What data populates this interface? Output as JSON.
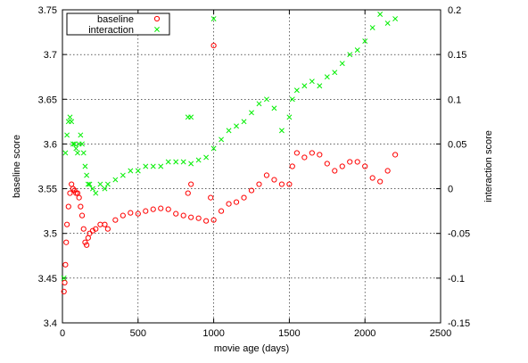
{
  "chart_data": {
    "type": "scatter",
    "title": "",
    "xlabel": "movie age (days)",
    "ylabel": "baseline score",
    "y2label": "interaction score",
    "xlim": [
      0,
      2500
    ],
    "ylim": [
      3.4,
      3.75
    ],
    "y2lim": [
      -0.15,
      0.2
    ],
    "grid": true,
    "legend_position": "top-left",
    "x_ticks": [
      "0",
      "500",
      "1000",
      "1500",
      "2000",
      "2500"
    ],
    "y_ticks": [
      "3.4",
      "3.45",
      "3.5",
      "3.55",
      "3.6",
      "3.65",
      "3.7",
      "3.75"
    ],
    "y2_ticks": [
      "-0.15",
      "-0.1",
      "-0.05",
      "0",
      "0.05",
      "0.1",
      "0.15",
      "0.2"
    ],
    "series": [
      {
        "name": "baseline",
        "axis": "left",
        "marker": "circle",
        "color": "#ff0000",
        "x": [
          10,
          15,
          20,
          25,
          30,
          40,
          50,
          60,
          70,
          80,
          90,
          100,
          110,
          120,
          130,
          140,
          150,
          160,
          170,
          180,
          200,
          220,
          250,
          280,
          300,
          350,
          400,
          450,
          500,
          550,
          600,
          650,
          700,
          750,
          800,
          850,
          900,
          950,
          1000,
          1050,
          1100,
          1150,
          1200,
          1250,
          1300,
          1350,
          1400,
          1450,
          1500,
          1520,
          1550,
          1600,
          1650,
          1700,
          1750,
          1800,
          1850,
          1900,
          1950,
          2000,
          2050,
          2100,
          2150,
          2200,
          1000,
          850,
          830,
          980
        ],
        "y": [
          3.435,
          3.445,
          3.465,
          3.49,
          3.51,
          3.53,
          3.545,
          3.555,
          3.55,
          3.548,
          3.545,
          3.545,
          3.54,
          3.53,
          3.52,
          3.505,
          3.49,
          3.487,
          3.495,
          3.5,
          3.503,
          3.505,
          3.51,
          3.51,
          3.505,
          3.515,
          3.52,
          3.523,
          3.522,
          3.525,
          3.527,
          3.528,
          3.527,
          3.522,
          3.52,
          3.518,
          3.517,
          3.514,
          3.515,
          3.525,
          3.533,
          3.535,
          3.54,
          3.548,
          3.555,
          3.565,
          3.56,
          3.555,
          3.555,
          3.575,
          3.59,
          3.585,
          3.59,
          3.588,
          3.578,
          3.57,
          3.575,
          3.58,
          3.58,
          3.575,
          3.562,
          3.558,
          3.57,
          3.588,
          3.71,
          3.555,
          3.545,
          3.54
        ]
      },
      {
        "name": "interaction",
        "axis": "right",
        "marker": "cross",
        "color": "#00ee00",
        "x": [
          10,
          20,
          30,
          40,
          50,
          60,
          70,
          80,
          90,
          100,
          110,
          120,
          130,
          140,
          150,
          160,
          170,
          180,
          200,
          220,
          250,
          280,
          300,
          350,
          400,
          450,
          500,
          550,
          600,
          650,
          700,
          750,
          800,
          850,
          900,
          950,
          1000,
          1050,
          1100,
          1150,
          1200,
          1250,
          1300,
          1350,
          1400,
          1450,
          1500,
          1520,
          1550,
          1600,
          1650,
          1700,
          1750,
          1800,
          1850,
          1900,
          1950,
          2000,
          2050,
          2100,
          2150,
          2200,
          1000,
          830,
          850
        ],
        "y": [
          -0.1,
          0.04,
          0.06,
          0.075,
          0.08,
          0.075,
          0.05,
          0.05,
          0.045,
          0.04,
          0.05,
          0.06,
          0.05,
          0.04,
          0.025,
          0.015,
          0.005,
          0.005,
          0.0,
          -0.005,
          0.005,
          0.0,
          0.005,
          0.01,
          0.015,
          0.02,
          0.02,
          0.025,
          0.025,
          0.025,
          0.03,
          0.03,
          0.03,
          0.028,
          0.032,
          0.035,
          0.045,
          0.055,
          0.065,
          0.07,
          0.075,
          0.085,
          0.095,
          0.1,
          0.09,
          0.065,
          0.08,
          0.1,
          0.11,
          0.115,
          0.12,
          0.115,
          0.125,
          0.13,
          0.14,
          0.15,
          0.155,
          0.165,
          0.18,
          0.195,
          0.185,
          0.19,
          0.19,
          0.08,
          0.08
        ]
      }
    ]
  }
}
